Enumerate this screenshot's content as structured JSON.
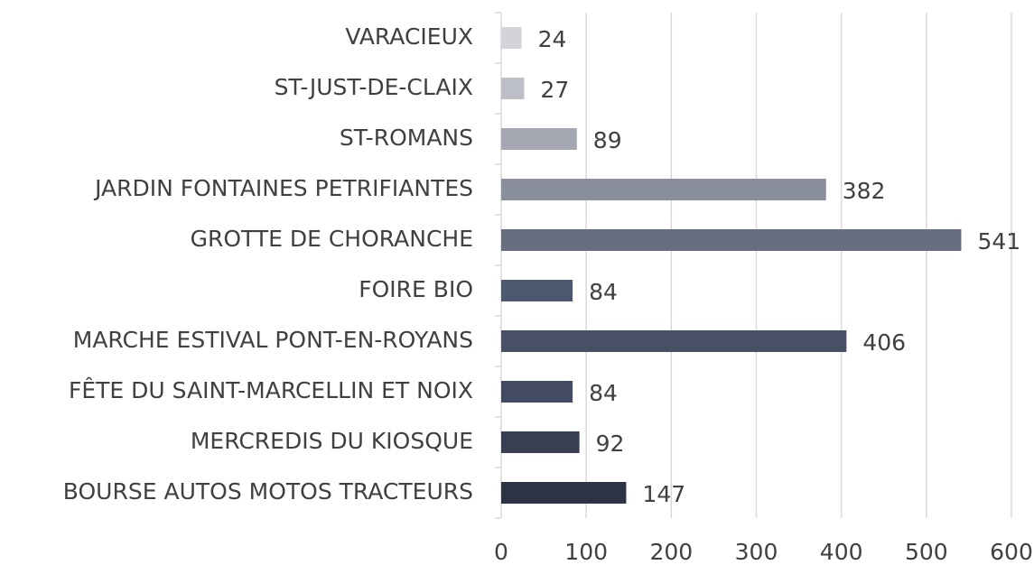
{
  "chart_data": {
    "type": "bar",
    "orientation": "horizontal",
    "categories": [
      "VARACIEUX",
      "ST-JUST-DE-CLAIX",
      "ST-ROMANS",
      "JARDIN FONTAINES PETRIFIANTES",
      "GROTTE DE CHORANCHE",
      "FOIRE BIO",
      "MARCHE ESTIVAL PONT-EN-ROYANS",
      "FÊTE DU SAINT-MARCELLIN ET  NOIX",
      "MERCREDIS DU KIOSQUE",
      "BOURSE AUTOS MOTOS TRACTEURS"
    ],
    "values": [
      24,
      27,
      89,
      382,
      541,
      84,
      406,
      84,
      92,
      147
    ],
    "colors": [
      "#d3d4d9",
      "#bdbfc6",
      "#a5a8b3",
      "#8a8f9c",
      "#666e80",
      "#4d5770",
      "#485066",
      "#424b63",
      "#383f53",
      "#2c3345"
    ],
    "xlim": [
      0,
      600
    ],
    "xticks": [
      0,
      100,
      200,
      300,
      400,
      500,
      600
    ],
    "grid": true
  }
}
